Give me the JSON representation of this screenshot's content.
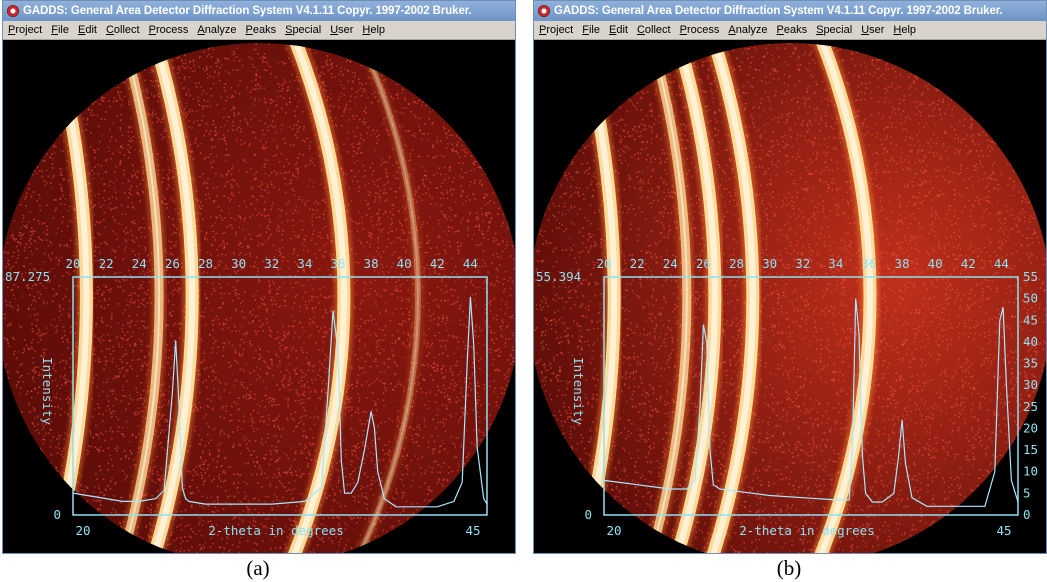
{
  "colors": {
    "ring": "#ffe2a0",
    "trace": "#a8e8ff",
    "frame": "#8fe0f0",
    "noise_a": "#e02020",
    "noise_b": "#ff5040"
  },
  "panels": [
    {
      "id": "a",
      "title": "GADDS: General Area Detector Diffraction System V4.1.11  Copyr. 1997-2002 Bruker.",
      "menu": [
        "Project",
        "File",
        "Edit",
        "Collect",
        "Process",
        "Analyze",
        "Peaks",
        "Special",
        "User",
        "Help"
      ],
      "caption": "(a)",
      "frame_range": {
        "x_min": 20,
        "x_max": 45
      },
      "y_max_label": "87.275",
      "y_min_label": "0",
      "x_start_label": "20",
      "x_end_label": "45",
      "xlabel": "2-theta in degrees",
      "ylabel": "Intensity",
      "top_ticks": [
        "20",
        "22",
        "24",
        "26",
        "28",
        "30",
        "32",
        "34",
        "36",
        "38",
        "40",
        "42",
        "44"
      ],
      "right_ticks": [],
      "chart_data": {
        "type": "line",
        "x": [
          20,
          21,
          22,
          23,
          24,
          25,
          25.5,
          26,
          26.2,
          26.4,
          26.6,
          26.8,
          27,
          28,
          30,
          32,
          34,
          35,
          35.4,
          35.7,
          36,
          36.2,
          36.4,
          36.8,
          37.2,
          37.6,
          38,
          38.2,
          38.4,
          38.8,
          39.5,
          40,
          42,
          43,
          43.5,
          43.8,
          44,
          44.2,
          44.4,
          44.8,
          45
        ],
        "y": [
          8,
          7,
          6,
          5,
          5,
          6,
          9,
          45,
          64,
          40,
          10,
          6,
          5,
          4,
          4,
          4,
          5,
          10,
          45,
          75,
          60,
          20,
          8,
          8,
          12,
          24,
          38,
          32,
          16,
          6,
          3,
          3,
          3,
          5,
          12,
          55,
          80,
          62,
          25,
          6,
          4
        ],
        "ylim": [
          0,
          87.275
        ],
        "xlim": [
          20,
          45
        ],
        "rings": [
          {
            "two_theta": 20.9,
            "intensity": "strong"
          },
          {
            "two_theta": 25.3,
            "intensity": "medium"
          },
          {
            "two_theta": 27.3,
            "intensity": "strong"
          },
          {
            "two_theta": 36.5,
            "intensity": "strong"
          },
          {
            "two_theta": 41,
            "intensity": "faint"
          }
        ]
      }
    },
    {
      "id": "b",
      "title": "GADDS: General Area Detector Diffraction System V4.1.11  Copyr. 1997-2002 Bruker.",
      "menu": [
        "Project",
        "File",
        "Edit",
        "Collect",
        "Process",
        "Analyze",
        "Peaks",
        "Special",
        "User",
        "Help"
      ],
      "caption": "(b)",
      "frame_range": {
        "x_min": 20,
        "x_max": 45
      },
      "y_max_label": "55.394",
      "y_min_label": "0",
      "x_start_label": "20",
      "x_end_label": "45",
      "xlabel": "2-theta in degrees",
      "ylabel": "Intensity",
      "top_ticks": [
        "20",
        "22",
        "24",
        "26",
        "28",
        "30",
        "32",
        "34",
        "36",
        "38",
        "40",
        "42",
        "44"
      ],
      "right_ticks": [
        "0",
        "5",
        "10",
        "15",
        "20",
        "25",
        "30",
        "35",
        "40",
        "45",
        "50",
        "55"
      ],
      "chart_data": {
        "type": "line",
        "x": [
          20,
          21,
          22,
          23,
          24,
          25,
          25.5,
          25.8,
          26,
          26.2,
          26.4,
          26.6,
          27,
          28,
          30,
          32,
          34,
          34.8,
          35,
          35.2,
          35.4,
          35.6,
          35.8,
          36.2,
          36.8,
          37.5,
          37.8,
          38,
          38.2,
          38.6,
          39.5,
          41,
          43,
          43.6,
          43.9,
          44.1,
          44.3,
          44.6,
          45
        ],
        "y": [
          8,
          7.5,
          7,
          6.5,
          6,
          6,
          8,
          25,
          44,
          40,
          15,
          7,
          6,
          5.5,
          4.5,
          4,
          3.5,
          3.5,
          15,
          50,
          42,
          14,
          5,
          3,
          3,
          5,
          14,
          22,
          12,
          4,
          2,
          2,
          2,
          10,
          45,
          48,
          30,
          8,
          3
        ],
        "ylim": [
          0,
          55
        ],
        "xlim": [
          20,
          45
        ],
        "rings": [
          {
            "two_theta": 20.7,
            "intensity": "strong"
          },
          {
            "two_theta": 25.1,
            "intensity": "medium"
          },
          {
            "two_theta": 26.8,
            "intensity": "strong"
          },
          {
            "two_theta": 29.1,
            "intensity": "strong"
          },
          {
            "two_theta": 36.2,
            "intensity": "strong"
          }
        ]
      }
    }
  ]
}
